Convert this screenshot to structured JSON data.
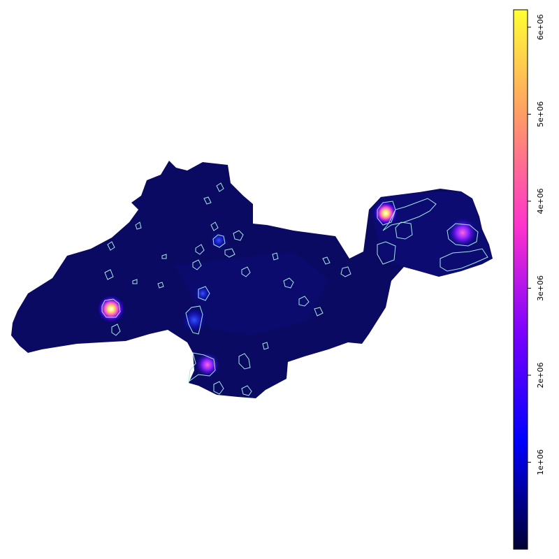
{
  "map": {
    "background_color": "#ffffff",
    "region_fill": "#0a0a60",
    "contour_color": "#a6e8e6",
    "hotspots": [
      {
        "name": "west-hotspot",
        "intensity": 4500000
      },
      {
        "name": "northeast-hotspot",
        "intensity": 4000000
      },
      {
        "name": "east-hotspot",
        "intensity": 3000000
      },
      {
        "name": "south-hotspot",
        "intensity": 2200000
      },
      {
        "name": "central-south-hotspot",
        "intensity": 1500000
      }
    ]
  },
  "colorbar": {
    "min": 0,
    "max": 6200000,
    "colors": [
      "#000033",
      "#0000ff",
      "#7b00ff",
      "#ff33cc",
      "#ff9966",
      "#ffff33"
    ],
    "ticks": [
      {
        "value": 1000000,
        "label": "1e+06"
      },
      {
        "value": 2000000,
        "label": "2e+06"
      },
      {
        "value": 3000000,
        "label": "3e+06"
      },
      {
        "value": 4000000,
        "label": "4e+06"
      },
      {
        "value": 5000000,
        "label": "5e+06"
      },
      {
        "value": 6000000,
        "label": "6e+06"
      }
    ]
  }
}
